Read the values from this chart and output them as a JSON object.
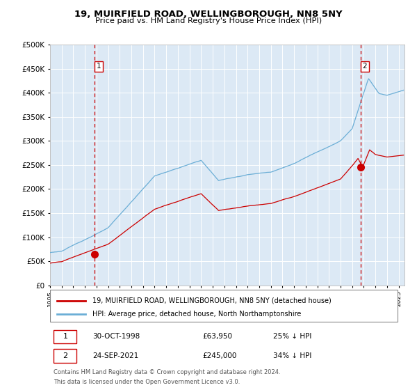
{
  "title": "19, MUIRFIELD ROAD, WELLINGBOROUGH, NN8 5NY",
  "subtitle": "Price paid vs. HM Land Registry's House Price Index (HPI)",
  "bg_color": "#dce9f5",
  "plot_bg_color": "#dce9f5",
  "hpi_color": "#6baed6",
  "price_color": "#cc0000",
  "marker_color": "#cc0000",
  "dashed_line_color": "#cc0000",
  "sale1_date_num": 1998.83,
  "sale1_price": 63950,
  "sale1_label": "1",
  "sale2_date_num": 2021.73,
  "sale2_price": 245000,
  "sale2_label": "2",
  "legend_line1": "19, MUIRFIELD ROAD, WELLINGBOROUGH, NN8 5NY (detached house)",
  "legend_line2": "HPI: Average price, detached house, North Northamptonshire",
  "table_row1": [
    "1",
    "30-OCT-1998",
    "£63,950",
    "25% ↓ HPI"
  ],
  "table_row2": [
    "2",
    "24-SEP-2021",
    "£245,000",
    "34% ↓ HPI"
  ],
  "footnote1": "Contains HM Land Registry data © Crown copyright and database right 2024.",
  "footnote2": "This data is licensed under the Open Government Licence v3.0.",
  "ylim": [
    0,
    500000
  ],
  "xlim_start": 1995.3,
  "xlim_end": 2025.5
}
